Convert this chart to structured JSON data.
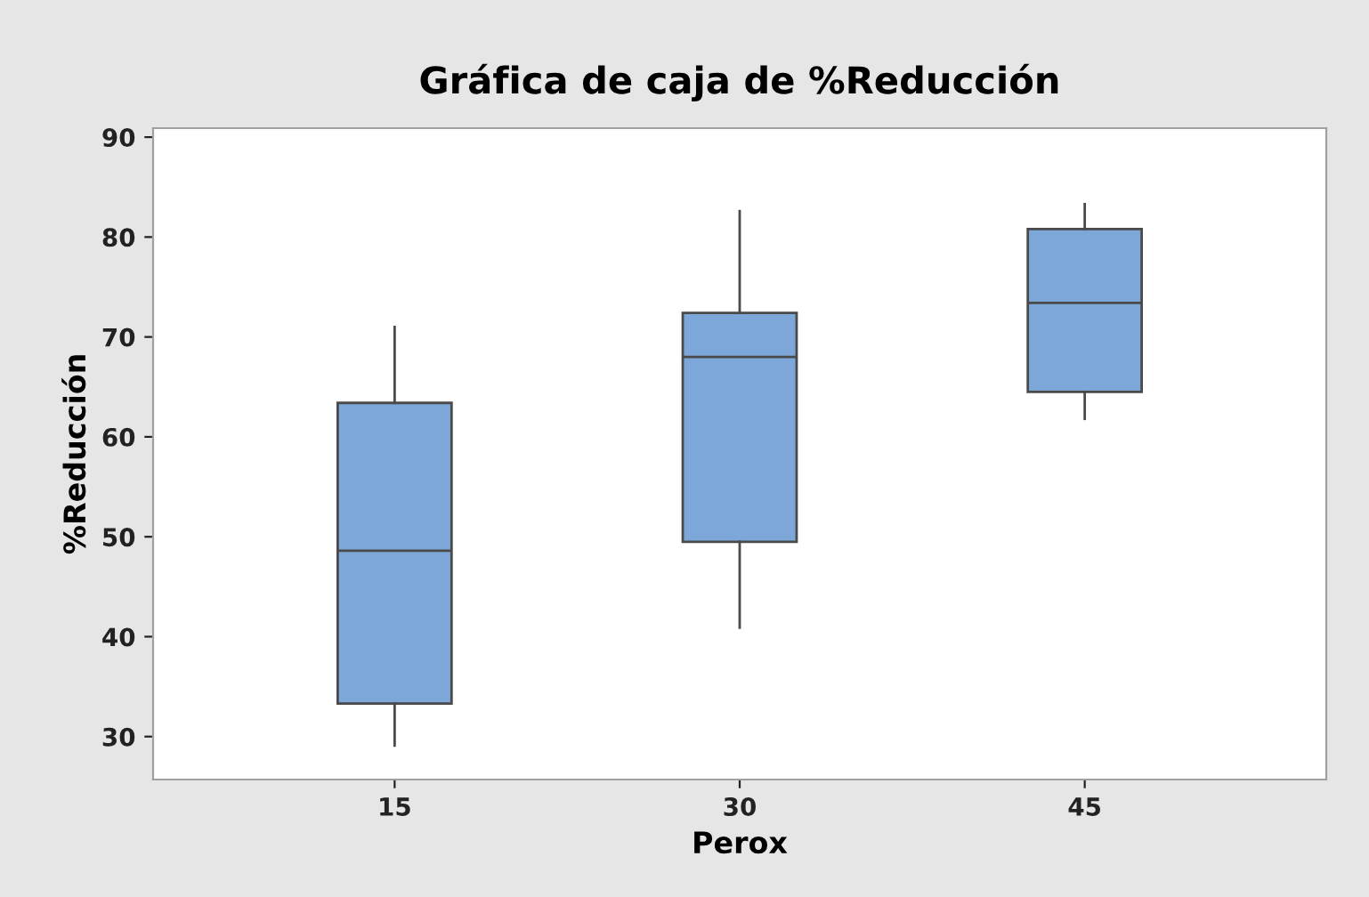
{
  "chart_data": {
    "type": "box",
    "title": "Gráfica de caja de %Reducción",
    "xlabel": "Perox",
    "ylabel": "%Reducción",
    "categories": [
      "15",
      "30",
      "45"
    ],
    "series": [
      {
        "color": "#7da7d9",
        "boxes": [
          {
            "low": 29.1,
            "q1": 33.3,
            "median": 48.6,
            "q3": 63.4,
            "high": 71.0
          },
          {
            "low": 40.9,
            "q1": 49.5,
            "median": 68.0,
            "q3": 72.4,
            "high": 82.6
          },
          {
            "low": 61.8,
            "q1": 64.5,
            "median": 73.4,
            "q3": 80.8,
            "high": 83.3
          }
        ]
      }
    ],
    "ylim": [
      25.7,
      90.9
    ],
    "yticks": [
      30,
      40,
      50,
      60,
      70,
      80,
      90
    ],
    "grid": false
  }
}
